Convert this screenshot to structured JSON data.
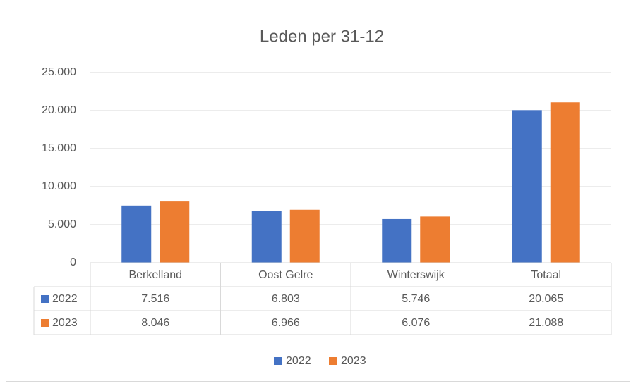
{
  "chart_data": {
    "type": "bar",
    "title": "Leden per 31-12",
    "categories": [
      "Berkelland",
      "Oost Gelre",
      "Winterswijk",
      "Totaal"
    ],
    "series": [
      {
        "name": "2022",
        "color": "#4472c4",
        "values": [
          7516,
          6803,
          5746,
          20065
        ],
        "value_labels": [
          "7.516",
          "6.803",
          "5.746",
          "20.065"
        ]
      },
      {
        "name": "2023",
        "color": "#ed7d31",
        "values": [
          8046,
          6966,
          6076,
          21088
        ],
        "value_labels": [
          "8.046",
          "6.966",
          "6.076",
          "21.088"
        ]
      }
    ],
    "ylim": [
      0,
      25000
    ],
    "yticks": [
      0,
      {
        "value": 5000,
        "label": "5.000"
      },
      {
        "value": 10000,
        "label": "10.000"
      },
      {
        "value": 15000,
        "label": "15.000"
      },
      {
        "value": 20000,
        "label": "20.000"
      },
      {
        "value": 25000,
        "label": "25.000"
      }
    ],
    "grid": true,
    "legend": "bottom",
    "data_table": true
  }
}
